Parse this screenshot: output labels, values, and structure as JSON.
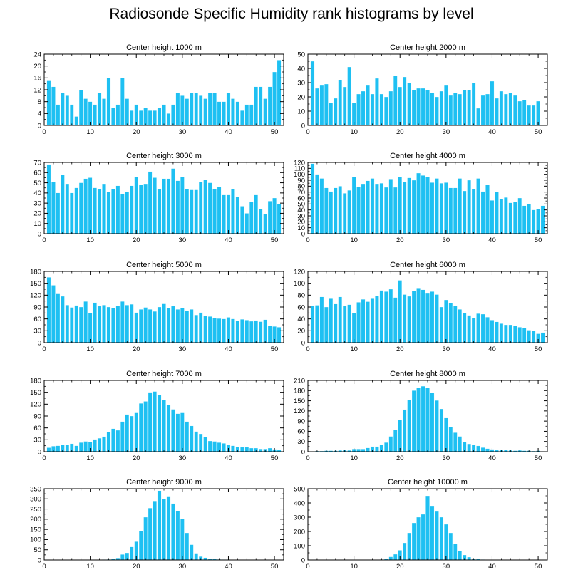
{
  "title": "Radiosonde Specific Humidity rank histograms by level",
  "colors": {
    "bar": "#1ec0f2",
    "bar_edge": "#ffffff",
    "axis": "#000000"
  },
  "chart_data": [
    {
      "type": "bar",
      "title": "Center height 1000 m",
      "x": [
        0,
        1,
        2,
        3,
        4,
        5,
        6,
        7,
        8,
        9,
        10,
        11,
        12,
        13,
        14,
        15,
        16,
        17,
        18,
        19,
        20,
        21,
        22,
        23,
        24,
        25,
        26,
        27,
        28,
        29,
        30,
        31,
        32,
        33,
        34,
        35,
        36,
        37,
        38,
        39,
        40,
        41,
        42,
        43,
        44,
        45,
        46,
        47,
        48,
        49,
        50,
        51
      ],
      "values": [
        0,
        15,
        13,
        7,
        11,
        10,
        7,
        3,
        12,
        9,
        8,
        7,
        11,
        9,
        16,
        6,
        7,
        16,
        9,
        5,
        7,
        5,
        6,
        5,
        5,
        6,
        7,
        4,
        7,
        11,
        10,
        9,
        11,
        11,
        10,
        9,
        11,
        11,
        8,
        8,
        11,
        9,
        8,
        5,
        7,
        7,
        13,
        13,
        9,
        13,
        18,
        22
      ],
      "xticks": [
        0,
        10,
        20,
        30,
        40,
        50
      ],
      "yticks": [
        0,
        4,
        8,
        12,
        16,
        20,
        24
      ],
      "xlim": [
        0,
        52
      ],
      "ylim": [
        0,
        24
      ]
    },
    {
      "type": "bar",
      "title": "Center height 2000 m",
      "x": [
        0,
        1,
        2,
        3,
        4,
        5,
        6,
        7,
        8,
        9,
        10,
        11,
        12,
        13,
        14,
        15,
        16,
        17,
        18,
        19,
        20,
        21,
        22,
        23,
        24,
        25,
        26,
        27,
        28,
        29,
        30,
        31,
        32,
        33,
        34,
        35,
        36,
        37,
        38,
        39,
        40,
        41,
        42,
        43,
        44,
        45,
        46,
        47,
        48,
        49,
        50,
        51
      ],
      "values": [
        0,
        45,
        26,
        28,
        29,
        16,
        19,
        32,
        27,
        41,
        16,
        22,
        24,
        28,
        22,
        33,
        22,
        20,
        24,
        35,
        27,
        34,
        30,
        25,
        26,
        26,
        25,
        23,
        20,
        24,
        28,
        21,
        23,
        22,
        25,
        25,
        30,
        12,
        21,
        22,
        31,
        19,
        24,
        22,
        23,
        21,
        17,
        18,
        14,
        14,
        17,
        0
      ],
      "xticks": [
        0,
        10,
        20,
        30,
        40,
        50
      ],
      "yticks": [
        0,
        10,
        20,
        30,
        40,
        50
      ],
      "xlim": [
        0,
        52
      ],
      "ylim": [
        0,
        50
      ]
    },
    {
      "type": "bar",
      "title": "Center height 3000 m",
      "x": [
        0,
        1,
        2,
        3,
        4,
        5,
        6,
        7,
        8,
        9,
        10,
        11,
        12,
        13,
        14,
        15,
        16,
        17,
        18,
        19,
        20,
        21,
        22,
        23,
        24,
        25,
        26,
        27,
        28,
        29,
        30,
        31,
        32,
        33,
        34,
        35,
        36,
        37,
        38,
        39,
        40,
        41,
        42,
        43,
        44,
        45,
        46,
        47,
        48,
        49,
        50,
        51
      ],
      "values": [
        0,
        68,
        51,
        40,
        58,
        49,
        40,
        45,
        50,
        54,
        55,
        45,
        44,
        49,
        41,
        44,
        47,
        39,
        41,
        47,
        56,
        48,
        49,
        61,
        55,
        44,
        54,
        54,
        64,
        52,
        56,
        44,
        43,
        43,
        51,
        53,
        50,
        44,
        46,
        38,
        38,
        44,
        36,
        27,
        20,
        31,
        38,
        24,
        19,
        32,
        35,
        29
      ],
      "xticks": [
        0,
        10,
        20,
        30,
        40,
        50
      ],
      "yticks": [
        0,
        10,
        20,
        30,
        40,
        50,
        60,
        70
      ],
      "xlim": [
        0,
        52
      ],
      "ylim": [
        0,
        70
      ]
    },
    {
      "type": "bar",
      "title": "Center height 4000 m",
      "x": [
        0,
        1,
        2,
        3,
        4,
        5,
        6,
        7,
        8,
        9,
        10,
        11,
        12,
        13,
        14,
        15,
        16,
        17,
        18,
        19,
        20,
        21,
        22,
        23,
        24,
        25,
        26,
        27,
        28,
        29,
        30,
        31,
        32,
        33,
        34,
        35,
        36,
        37,
        38,
        39,
        40,
        41,
        42,
        43,
        44,
        45,
        46,
        47,
        48,
        49,
        50,
        51
      ],
      "values": [
        0,
        118,
        100,
        93,
        77,
        71,
        77,
        80,
        68,
        73,
        96,
        79,
        84,
        89,
        93,
        84,
        85,
        78,
        92,
        78,
        95,
        87,
        94,
        90,
        102,
        98,
        95,
        86,
        93,
        85,
        86,
        77,
        77,
        93,
        72,
        90,
        75,
        93,
        71,
        82,
        56,
        70,
        58,
        61,
        52,
        53,
        60,
        47,
        50,
        40,
        42,
        47
      ],
      "xticks": [
        0,
        10,
        20,
        30,
        40,
        50
      ],
      "yticks": [
        0,
        10,
        20,
        30,
        40,
        50,
        60,
        70,
        80,
        90,
        100,
        110,
        120
      ],
      "xlim": [
        0,
        52
      ],
      "ylim": [
        0,
        120
      ]
    },
    {
      "type": "bar",
      "title": "Center height 5000 m",
      "x": [
        0,
        1,
        2,
        3,
        4,
        5,
        6,
        7,
        8,
        9,
        10,
        11,
        12,
        13,
        14,
        15,
        16,
        17,
        18,
        19,
        20,
        21,
        22,
        23,
        24,
        25,
        26,
        27,
        28,
        29,
        30,
        31,
        32,
        33,
        34,
        35,
        36,
        37,
        38,
        39,
        40,
        41,
        42,
        43,
        44,
        45,
        46,
        47,
        48,
        49,
        50,
        51
      ],
      "values": [
        0,
        165,
        145,
        125,
        117,
        95,
        89,
        94,
        90,
        104,
        75,
        101,
        92,
        95,
        90,
        87,
        93,
        104,
        95,
        97,
        76,
        84,
        89,
        84,
        79,
        90,
        98,
        88,
        92,
        84,
        88,
        81,
        84,
        70,
        76,
        67,
        66,
        63,
        61,
        60,
        64,
        60,
        55,
        59,
        57,
        54,
        56,
        53,
        58,
        43,
        41,
        39
      ],
      "xticks": [
        0,
        10,
        20,
        30,
        40,
        50
      ],
      "yticks": [
        0,
        30,
        60,
        90,
        120,
        150,
        180
      ],
      "xlim": [
        0,
        52
      ],
      "ylim": [
        0,
        180
      ]
    },
    {
      "type": "bar",
      "title": "Center height 6000 m",
      "x": [
        0,
        1,
        2,
        3,
        4,
        5,
        6,
        7,
        8,
        9,
        10,
        11,
        12,
        13,
        14,
        15,
        16,
        17,
        18,
        19,
        20,
        21,
        22,
        23,
        24,
        25,
        26,
        27,
        28,
        29,
        30,
        31,
        32,
        33,
        34,
        35,
        36,
        37,
        38,
        39,
        40,
        41,
        42,
        43,
        44,
        45,
        46,
        47,
        48,
        49,
        50,
        51
      ],
      "values": [
        0,
        62,
        63,
        77,
        60,
        74,
        65,
        77,
        62,
        64,
        50,
        68,
        73,
        69,
        74,
        79,
        88,
        86,
        90,
        76,
        105,
        81,
        78,
        87,
        92,
        89,
        84,
        86,
        81,
        60,
        72,
        67,
        62,
        56,
        50,
        46,
        42,
        49,
        48,
        43,
        38,
        35,
        32,
        30,
        30,
        28,
        26,
        25,
        21,
        20,
        15,
        17
      ],
      "xticks": [
        0,
        10,
        20,
        30,
        40,
        50
      ],
      "yticks": [
        0,
        20,
        40,
        60,
        80,
        100,
        120
      ],
      "xlim": [
        0,
        52
      ],
      "ylim": [
        0,
        120
      ]
    },
    {
      "type": "bar",
      "title": "Center height 7000 m",
      "x": [
        0,
        1,
        2,
        3,
        4,
        5,
        6,
        7,
        8,
        9,
        10,
        11,
        12,
        13,
        14,
        15,
        16,
        17,
        18,
        19,
        20,
        21,
        22,
        23,
        24,
        25,
        26,
        27,
        28,
        29,
        30,
        31,
        32,
        33,
        34,
        35,
        36,
        37,
        38,
        39,
        40,
        41,
        42,
        43,
        44,
        45,
        46,
        47,
        48,
        49,
        50,
        51
      ],
      "values": [
        0,
        10,
        14,
        15,
        17,
        17,
        20,
        15,
        23,
        26,
        24,
        31,
        34,
        38,
        50,
        58,
        54,
        76,
        94,
        90,
        98,
        122,
        127,
        150,
        152,
        143,
        131,
        118,
        107,
        96,
        98,
        76,
        65,
        51,
        45,
        37,
        27,
        26,
        23,
        21,
        17,
        15,
        12,
        11,
        11,
        9,
        9,
        7,
        7,
        9,
        6,
        4
      ],
      "xticks": [
        0,
        10,
        20,
        30,
        40,
        50
      ],
      "yticks": [
        0,
        30,
        60,
        90,
        120,
        150,
        180
      ],
      "xlim": [
        0,
        52
      ],
      "ylim": [
        0,
        180
      ]
    },
    {
      "type": "bar",
      "title": "Center height 8000 m",
      "x": [
        0,
        1,
        2,
        3,
        4,
        5,
        6,
        7,
        8,
        9,
        10,
        11,
        12,
        13,
        14,
        15,
        16,
        17,
        18,
        19,
        20,
        21,
        22,
        23,
        24,
        25,
        26,
        27,
        28,
        29,
        30,
        31,
        32,
        33,
        34,
        35,
        36,
        37,
        38,
        39,
        40,
        41,
        42,
        43,
        44,
        45,
        46,
        47,
        48,
        49,
        50,
        51
      ],
      "values": [
        0,
        0,
        2,
        2,
        3,
        3,
        3,
        4,
        5,
        4,
        8,
        8,
        8,
        11,
        15,
        15,
        20,
        27,
        45,
        64,
        94,
        124,
        152,
        180,
        189,
        193,
        189,
        173,
        151,
        126,
        99,
        73,
        56,
        45,
        28,
        23,
        21,
        17,
        12,
        9,
        7,
        6,
        5,
        5,
        4,
        3,
        4,
        3,
        3,
        2,
        3,
        1
      ],
      "xticks": [
        0,
        10,
        20,
        30,
        40,
        50
      ],
      "yticks": [
        0,
        30,
        60,
        90,
        120,
        150,
        180,
        210
      ],
      "xlim": [
        0,
        52
      ],
      "ylim": [
        0,
        210
      ]
    },
    {
      "type": "bar",
      "title": "Center height 9000 m",
      "x": [
        0,
        1,
        2,
        3,
        4,
        5,
        6,
        7,
        8,
        9,
        10,
        11,
        12,
        13,
        14,
        15,
        16,
        17,
        18,
        19,
        20,
        21,
        22,
        23,
        24,
        25,
        26,
        27,
        28,
        29,
        30,
        31,
        32,
        33,
        34,
        35,
        36,
        37,
        38,
        39,
        40,
        41,
        42,
        43,
        44,
        45,
        46,
        47,
        48,
        49,
        50,
        51
      ],
      "values": [
        0,
        0,
        0,
        0,
        0,
        0,
        0,
        0,
        0,
        0,
        1,
        0,
        1,
        2,
        3,
        5,
        10,
        27,
        35,
        64,
        90,
        142,
        210,
        255,
        290,
        340,
        300,
        313,
        277,
        240,
        202,
        133,
        75,
        33,
        17,
        11,
        7,
        5,
        3,
        2,
        2,
        1,
        1,
        1,
        0,
        0,
        0,
        0,
        0,
        0,
        0,
        0
      ],
      "xticks": [
        0,
        10,
        20,
        30,
        40,
        50
      ],
      "yticks": [
        0,
        50,
        100,
        150,
        200,
        250,
        300,
        350
      ],
      "xlim": [
        0,
        52
      ],
      "ylim": [
        0,
        350
      ]
    },
    {
      "type": "bar",
      "title": "Center height 10000 m",
      "x": [
        0,
        1,
        2,
        3,
        4,
        5,
        6,
        7,
        8,
        9,
        10,
        11,
        12,
        13,
        14,
        15,
        16,
        17,
        18,
        19,
        20,
        21,
        22,
        23,
        24,
        25,
        26,
        27,
        28,
        29,
        30,
        31,
        32,
        33,
        34,
        35,
        36,
        37,
        38,
        39,
        40,
        41,
        42,
        43,
        44,
        45,
        46,
        47,
        48,
        49,
        50,
        51
      ],
      "values": [
        0,
        0,
        0,
        0,
        0,
        0,
        0,
        0,
        0,
        0,
        0,
        0,
        0,
        0,
        0,
        1,
        3,
        10,
        22,
        40,
        68,
        120,
        190,
        260,
        300,
        320,
        450,
        380,
        340,
        300,
        250,
        190,
        115,
        65,
        35,
        20,
        10,
        6,
        3,
        2,
        1,
        0,
        0,
        0,
        0,
        0,
        0,
        0,
        0,
        0,
        0,
        0
      ],
      "xticks": [
        0,
        10,
        20,
        30,
        40,
        50
      ],
      "yticks": [
        0,
        100,
        200,
        300,
        400,
        500
      ],
      "xlim": [
        0,
        52
      ],
      "ylim": [
        0,
        500
      ]
    }
  ]
}
